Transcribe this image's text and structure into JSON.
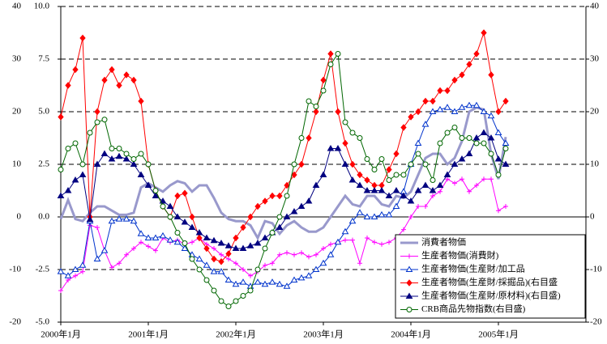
{
  "chart_data": {
    "type": "line",
    "categories": [
      "2000年1月",
      null,
      null,
      null,
      null,
      null,
      null,
      null,
      null,
      null,
      null,
      null,
      "2001年1月",
      null,
      null,
      null,
      null,
      null,
      null,
      null,
      null,
      null,
      null,
      null,
      "2002年1月",
      null,
      null,
      null,
      null,
      null,
      null,
      null,
      null,
      null,
      null,
      null,
      "2003年1月",
      null,
      null,
      null,
      null,
      null,
      null,
      null,
      null,
      null,
      null,
      null,
      "2004年1月",
      null,
      null,
      null,
      null,
      null,
      null,
      null,
      null,
      null,
      null,
      null,
      "2005年1月",
      null
    ],
    "ylim": [
      -5,
      10
    ],
    "yticks": [
      {
        "value": -5,
        "label": "-5.0"
      },
      {
        "value": -2.5,
        "label": "-2.5"
      },
      {
        "value": 0,
        "label": "0.0"
      },
      {
        "value": 2.5,
        "label": "2.5"
      },
      {
        "value": 5,
        "label": "5.0"
      },
      {
        "value": 7.5,
        "label": "7.5"
      },
      {
        "value": 10,
        "label": "10.0"
      }
    ],
    "y2lim": [
      -20,
      40
    ],
    "y2ticks": [
      -20,
      -10,
      0,
      10,
      20,
      30,
      40
    ],
    "grid": true,
    "legend": "lower right",
    "series": [
      {
        "name": "消費者物価",
        "color": "#9999cc",
        "marker": "none",
        "line_width": 3,
        "values": [
          -0.1,
          0.8,
          -0.1,
          -0.2,
          0.2,
          0.5,
          0.5,
          0.3,
          0.1,
          0.1,
          0.2,
          1.4,
          1.6,
          1.4,
          1.2,
          1.5,
          1.7,
          1.6,
          1.2,
          1.5,
          1.5,
          0.9,
          0.2,
          -0.1,
          -0.2,
          -0.2,
          -0.4,
          -1.0,
          -0.2,
          -0.3,
          -0.8,
          -0.4,
          -0.2,
          -0.5,
          -0.7,
          -0.7,
          -0.5,
          0.0,
          0.5,
          1.0,
          0.6,
          0.5,
          1.0,
          1.0,
          0.6,
          0.5,
          1.0,
          0.9,
          1.2,
          2.0,
          2.8,
          3.0,
          3.0,
          2.5,
          2.8,
          3.6,
          5.0,
          5.2,
          5.1,
          3.0,
          1.8,
          3.8
        ]
      },
      {
        "name": "生産者物価(消費財)",
        "color": "#ff00ff",
        "marker": "plus",
        "line_width": 1,
        "values": [
          -3.5,
          -3.0,
          -2.8,
          -2.6,
          -0.4,
          -0.5,
          -1.6,
          -2.4,
          -2.2,
          -1.8,
          -1.5,
          -1.2,
          -1.4,
          -1.6,
          -1.0,
          -1.2,
          -1.1,
          -1.3,
          -1.2,
          -1.0,
          -1.3,
          -1.5,
          -1.8,
          -2.0,
          -2.2,
          -2.5,
          -2.8,
          -2.6,
          -2.3,
          -2.2,
          -1.8,
          -1.7,
          -1.8,
          -1.7,
          -1.9,
          -1.8,
          -1.5,
          -1.3,
          -1.2,
          -1.1,
          -1.1,
          -2.2,
          -1.0,
          -1.2,
          -1.3,
          -1.2,
          -1.0,
          -0.6,
          0.0,
          0.5,
          0.5,
          1.0,
          1.2,
          1.8,
          1.6,
          1.8,
          1.2,
          1.5,
          1.8,
          1.8,
          0.3,
          0.5
        ]
      },
      {
        "name": "生産者物価(生産財/加工品",
        "color": "#0033cc",
        "marker": "triangle-open",
        "line_width": 1,
        "values": [
          -2.6,
          -2.8,
          -2.5,
          -2.3,
          -0.2,
          -2.0,
          -1.6,
          -0.2,
          -0.1,
          -0.1,
          -0.2,
          -0.8,
          -1.0,
          -1.0,
          -0.9,
          -1.1,
          -1.2,
          -1.5,
          -1.8,
          -2.0,
          -2.3,
          -2.6,
          -2.6,
          -3.0,
          -3.2,
          -3.1,
          -3.3,
          -3.1,
          -3.2,
          -3.1,
          -3.2,
          -3.3,
          -3.0,
          -2.9,
          -2.8,
          -2.5,
          -2.2,
          -1.8,
          -1.2,
          -0.7,
          -0.2,
          0.2,
          0.0,
          0.0,
          0.1,
          0.1,
          0.5,
          1.2,
          2.5,
          3.5,
          4.4,
          5.0,
          5.1,
          5.2,
          5.0,
          5.2,
          5.3,
          5.3,
          5.0,
          4.8,
          4.0,
          3.5
        ]
      },
      {
        "name": "生産者物価(生産財/採掘品)(右目盛",
        "color": "#ff0000",
        "marker": "diamond",
        "line_width": 1,
        "axis": "y2",
        "values": [
          19,
          25,
          28,
          34,
          0,
          20,
          26,
          28,
          25,
          27,
          26,
          22,
          10,
          5,
          2,
          0,
          4,
          4.5,
          0,
          -4,
          -6,
          -8,
          -8.5,
          -7,
          -4,
          -2,
          0,
          2,
          3,
          4,
          4,
          6,
          8,
          10,
          15,
          20,
          26,
          31,
          20,
          14,
          10,
          8,
          7,
          6,
          6,
          9,
          12,
          17,
          19,
          20,
          22,
          22,
          24,
          24,
          26,
          27,
          29,
          31,
          35,
          27,
          20,
          22
        ]
      },
      {
        "name": "生産者物価(生産財/原材料)(右目盛)",
        "color": "#000080",
        "marker": "triangle",
        "line_width": 1,
        "axis": "y2",
        "values": [
          4,
          5,
          7,
          8,
          -0.5,
          10,
          12,
          11,
          11.5,
          11,
          10,
          8,
          6,
          4,
          3,
          2,
          0,
          -1,
          -2,
          -3,
          -4,
          -4.5,
          -5,
          -5.5,
          -6,
          -6,
          -5.5,
          -5,
          -4,
          -3,
          -2,
          0,
          1,
          2,
          3,
          6,
          8,
          13,
          13,
          10,
          7,
          6,
          5,
          5,
          5,
          4,
          5,
          4,
          3,
          5,
          6,
          5,
          6,
          8,
          10,
          11,
          12,
          15,
          16,
          15,
          11,
          10
        ]
      },
      {
        "name": "CRB商品先物指数(右目盛)",
        "color": "#006600",
        "marker": "circle-open",
        "line_width": 1,
        "axis": "y2",
        "values": [
          9,
          13,
          14,
          10,
          16,
          18,
          18.5,
          13,
          13,
          12,
          11,
          12,
          10,
          5,
          2,
          0,
          -3,
          -5,
          -8,
          -10,
          -12,
          -14,
          -16,
          -17,
          -16,
          -15,
          -14,
          -10,
          -6,
          -3,
          0,
          4,
          10,
          15,
          22,
          21,
          24,
          29,
          31,
          18,
          16,
          15,
          11,
          9,
          11,
          7,
          8,
          8,
          10,
          12,
          10,
          7,
          14,
          16,
          17,
          15,
          15,
          14,
          14,
          12,
          8,
          13
        ]
      }
    ]
  }
}
